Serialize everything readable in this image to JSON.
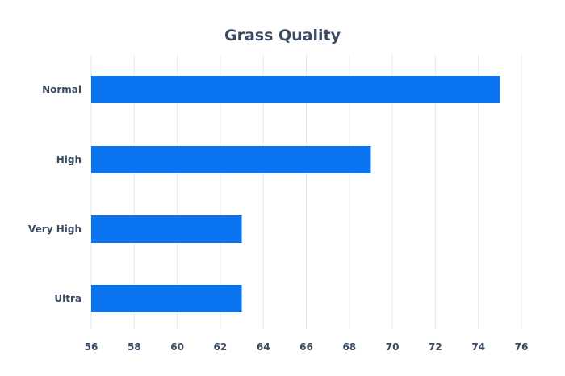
{
  "chart_data": {
    "type": "bar",
    "orientation": "horizontal",
    "title": "Grass Quality",
    "xlabel": "",
    "ylabel": "",
    "categories": [
      "Normal",
      "High",
      "Very High",
      "Ultra"
    ],
    "values": [
      75,
      69,
      63,
      63
    ],
    "xlim": [
      56,
      76
    ],
    "xticks": [
      56,
      58,
      60,
      62,
      64,
      66,
      68,
      70,
      72,
      74,
      76
    ],
    "grid": "vertical",
    "legend": "none",
    "bar_color": "#0a74f0"
  }
}
